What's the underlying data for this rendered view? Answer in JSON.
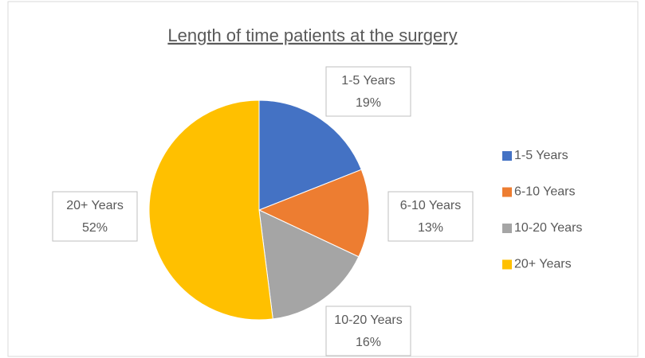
{
  "chart_data": {
    "type": "pie",
    "title": "Length of time patients at the surgery",
    "categories": [
      "1-5 Years",
      "6-10 Years",
      "10-20 Years",
      "20+ Years"
    ],
    "values": [
      19,
      13,
      16,
      52
    ],
    "value_labels": [
      "19%",
      "13%",
      "16%",
      "52%"
    ],
    "colors": [
      "#4472c4",
      "#ed7d31",
      "#a5a5a5",
      "#ffc000"
    ],
    "legend": "right"
  }
}
